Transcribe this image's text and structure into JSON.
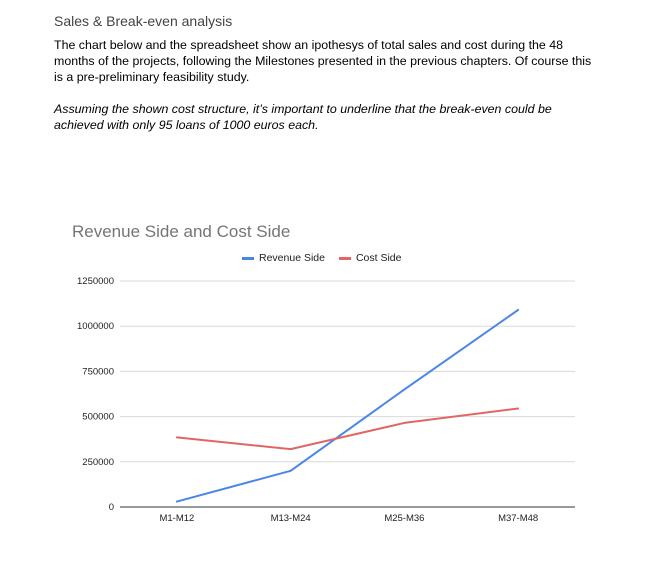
{
  "document": {
    "heading": "Sales & Break-even analysis",
    "paragraph1": "The chart below and the spreadsheet show an ipothesys of total sales and cost during the 48 months of the projects, following the Milestones presented in the previous chapters. Of course this is a pre-preliminary feasibility study.",
    "paragraph2": "Assuming the shown cost structure, it’s important to underline that the break-even could be achieved with only 95 loans of 1000 euros each."
  },
  "chart_data": {
    "type": "line",
    "title": "Revenue Side and Cost Side",
    "categories": [
      "M1-M12",
      "M13-M24",
      "M25-M36",
      "M37-M48"
    ],
    "series": [
      {
        "name": "Revenue Side",
        "color": "#4a86e8",
        "values": [
          30000,
          200000,
          650000,
          1090000
        ]
      },
      {
        "name": "Cost Side",
        "color": "#e06666",
        "values": [
          385000,
          320000,
          465000,
          545000
        ]
      }
    ],
    "yticks": [
      "0",
      "250000",
      "500000",
      "750000",
      "1000000",
      "1250000"
    ],
    "ylim": [
      0,
      1250000
    ],
    "xlabel": "",
    "ylabel": "",
    "grid": true,
    "legend_position": "top"
  }
}
